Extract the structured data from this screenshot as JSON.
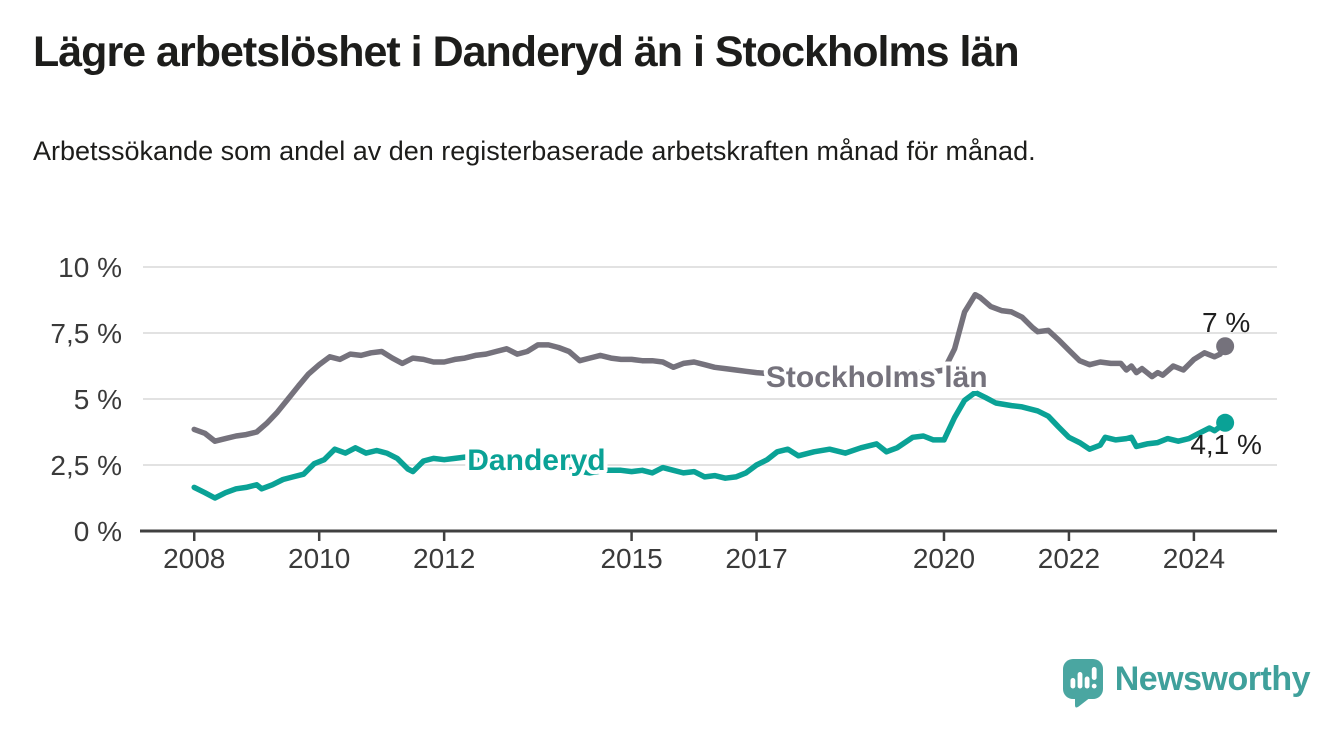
{
  "header": {
    "title": "Lägre arbetslöshet i Danderyd än i Stockholms län",
    "subtitle": "Arbetssökande som andel av den registerbaserade arbetskraften månad för månad."
  },
  "footer": {
    "brand": "Newsworthy",
    "logo_icon": "speech-bubble-bar-chart-icon",
    "brand_color": "#3fa09b",
    "bubble_color": "#4aa6a1"
  },
  "colors": {
    "stockholm_line": "#75727C",
    "danderyd_line": "#0AA296",
    "grid": "#d9d9d9",
    "axis_line": "#404040",
    "axis_text": "#3a3a3a",
    "value_label_text": "#1f1f1f"
  },
  "chart_data": {
    "type": "line",
    "title": "Lägre arbetslöshet i Danderyd än i Stockholms län",
    "subtitle": "Arbetssökande som andel av den registerbaserade arbetskraften månad för månad.",
    "unit": "%",
    "xlabel": "",
    "ylabel": "",
    "grid": "horizontal",
    "legend": "inline-labels",
    "xlim": [
      2007.18,
      2025.33
    ],
    "ylim": [
      0,
      10
    ],
    "x_ticks": [
      {
        "year": 2008,
        "label": "2008"
      },
      {
        "year": 2010,
        "label": "2010"
      },
      {
        "year": 2012,
        "label": "2012"
      },
      {
        "year": 2015,
        "label": "2015"
      },
      {
        "year": 2017,
        "label": "2017"
      },
      {
        "year": 2020,
        "label": "2020"
      },
      {
        "year": 2022,
        "label": "2022"
      },
      {
        "year": 2024,
        "label": "2024"
      }
    ],
    "y_ticks": [
      {
        "value": 0,
        "label": "0 %"
      },
      {
        "value": 2.5,
        "label": "2,5 %"
      },
      {
        "value": 5,
        "label": "5 %"
      },
      {
        "value": 7.5,
        "label": "7,5 %"
      },
      {
        "value": 10,
        "label": "10 %"
      }
    ],
    "series": [
      {
        "name": "Stockholms län",
        "color": "#75727C",
        "end_label": "7 %",
        "end_label_position": "above",
        "label_anchor": {
          "year": 2017.15,
          "pct": 5.87
        },
        "points": [
          [
            2008.0,
            3.85
          ],
          [
            2008.17,
            3.7
          ],
          [
            2008.33,
            3.4
          ],
          [
            2008.5,
            3.5
          ],
          [
            2008.67,
            3.6
          ],
          [
            2008.83,
            3.65
          ],
          [
            2009.0,
            3.75
          ],
          [
            2009.17,
            4.1
          ],
          [
            2009.33,
            4.5
          ],
          [
            2009.5,
            5.0
          ],
          [
            2009.67,
            5.5
          ],
          [
            2009.83,
            5.95
          ],
          [
            2010.0,
            6.3
          ],
          [
            2010.17,
            6.6
          ],
          [
            2010.33,
            6.5
          ],
          [
            2010.5,
            6.7
          ],
          [
            2010.67,
            6.65
          ],
          [
            2010.83,
            6.75
          ],
          [
            2011.0,
            6.8
          ],
          [
            2011.17,
            6.55
          ],
          [
            2011.33,
            6.35
          ],
          [
            2011.5,
            6.55
          ],
          [
            2011.67,
            6.5
          ],
          [
            2011.83,
            6.4
          ],
          [
            2012.0,
            6.4
          ],
          [
            2012.17,
            6.5
          ],
          [
            2012.33,
            6.55
          ],
          [
            2012.5,
            6.65
          ],
          [
            2012.67,
            6.7
          ],
          [
            2012.83,
            6.8
          ],
          [
            2013.0,
            6.9
          ],
          [
            2013.17,
            6.7
          ],
          [
            2013.33,
            6.8
          ],
          [
            2013.5,
            7.05
          ],
          [
            2013.67,
            7.05
          ],
          [
            2013.83,
            6.95
          ],
          [
            2014.0,
            6.8
          ],
          [
            2014.17,
            6.45
          ],
          [
            2014.33,
            6.55
          ],
          [
            2014.5,
            6.65
          ],
          [
            2014.67,
            6.55
          ],
          [
            2014.83,
            6.5
          ],
          [
            2015.0,
            6.5
          ],
          [
            2015.17,
            6.45
          ],
          [
            2015.33,
            6.45
          ],
          [
            2015.5,
            6.4
          ],
          [
            2015.67,
            6.2
          ],
          [
            2015.83,
            6.35
          ],
          [
            2016.0,
            6.4
          ],
          [
            2016.17,
            6.3
          ],
          [
            2016.33,
            6.2
          ],
          [
            2016.5,
            6.15
          ],
          [
            2016.67,
            6.1
          ],
          [
            2016.83,
            6.05
          ],
          [
            2017.0,
            6.0
          ],
          [
            2017.25,
            5.95
          ],
          [
            2017.5,
            5.9
          ],
          [
            2017.75,
            5.9
          ],
          [
            2018.0,
            5.85
          ],
          [
            2018.25,
            5.85
          ],
          [
            2018.5,
            5.85
          ],
          [
            2018.75,
            5.9
          ],
          [
            2019.0,
            5.9
          ],
          [
            2019.25,
            5.95
          ],
          [
            2019.5,
            6.0
          ],
          [
            2019.75,
            6.0
          ],
          [
            2020.0,
            6.1
          ],
          [
            2020.17,
            6.9
          ],
          [
            2020.33,
            8.3
          ],
          [
            2020.5,
            8.95
          ],
          [
            2020.58,
            8.85
          ],
          [
            2020.75,
            8.5
          ],
          [
            2020.92,
            8.35
          ],
          [
            2021.08,
            8.3
          ],
          [
            2021.25,
            8.1
          ],
          [
            2021.42,
            7.7
          ],
          [
            2021.5,
            7.55
          ],
          [
            2021.67,
            7.6
          ],
          [
            2021.83,
            7.25
          ],
          [
            2022.0,
            6.85
          ],
          [
            2022.17,
            6.45
          ],
          [
            2022.33,
            6.3
          ],
          [
            2022.5,
            6.4
          ],
          [
            2022.67,
            6.35
          ],
          [
            2022.83,
            6.35
          ],
          [
            2022.92,
            6.1
          ],
          [
            2023.0,
            6.25
          ],
          [
            2023.08,
            6.0
          ],
          [
            2023.17,
            6.15
          ],
          [
            2023.33,
            5.85
          ],
          [
            2023.42,
            6.0
          ],
          [
            2023.5,
            5.9
          ],
          [
            2023.67,
            6.25
          ],
          [
            2023.83,
            6.1
          ],
          [
            2024.0,
            6.5
          ],
          [
            2024.17,
            6.75
          ],
          [
            2024.33,
            6.6
          ],
          [
            2024.42,
            6.7
          ],
          [
            2024.5,
            7.0
          ]
        ]
      },
      {
        "name": "Danderyd",
        "color": "#0AA296",
        "end_label": "4,1 %",
        "end_label_position": "below",
        "label_anchor": {
          "year": 2012.37,
          "pct": 2.73
        },
        "points": [
          [
            2008.0,
            1.65
          ],
          [
            2008.17,
            1.45
          ],
          [
            2008.33,
            1.25
          ],
          [
            2008.5,
            1.45
          ],
          [
            2008.67,
            1.6
          ],
          [
            2008.83,
            1.65
          ],
          [
            2009.0,
            1.75
          ],
          [
            2009.08,
            1.6
          ],
          [
            2009.25,
            1.75
          ],
          [
            2009.42,
            1.95
          ],
          [
            2009.58,
            2.05
          ],
          [
            2009.75,
            2.15
          ],
          [
            2009.92,
            2.55
          ],
          [
            2010.08,
            2.7
          ],
          [
            2010.25,
            3.1
          ],
          [
            2010.42,
            2.95
          ],
          [
            2010.58,
            3.15
          ],
          [
            2010.75,
            2.95
          ],
          [
            2010.92,
            3.05
          ],
          [
            2011.08,
            2.95
          ],
          [
            2011.25,
            2.75
          ],
          [
            2011.42,
            2.35
          ],
          [
            2011.5,
            2.25
          ],
          [
            2011.67,
            2.65
          ],
          [
            2011.83,
            2.75
          ],
          [
            2012.0,
            2.7
          ],
          [
            2012.17,
            2.75
          ],
          [
            2012.33,
            2.8
          ],
          [
            2012.58,
            2.65
          ],
          [
            2012.83,
            2.7
          ],
          [
            2013.08,
            2.7
          ],
          [
            2013.33,
            2.6
          ],
          [
            2013.58,
            2.5
          ],
          [
            2013.83,
            2.4
          ],
          [
            2014.08,
            2.3
          ],
          [
            2014.33,
            2.2
          ],
          [
            2014.58,
            2.3
          ],
          [
            2014.83,
            2.3
          ],
          [
            2015.0,
            2.25
          ],
          [
            2015.17,
            2.3
          ],
          [
            2015.33,
            2.2
          ],
          [
            2015.5,
            2.4
          ],
          [
            2015.67,
            2.3
          ],
          [
            2015.83,
            2.2
          ],
          [
            2016.0,
            2.25
          ],
          [
            2016.17,
            2.05
          ],
          [
            2016.33,
            2.1
          ],
          [
            2016.5,
            2.0
          ],
          [
            2016.67,
            2.05
          ],
          [
            2016.83,
            2.2
          ],
          [
            2017.0,
            2.5
          ],
          [
            2017.17,
            2.7
          ],
          [
            2017.33,
            3.0
          ],
          [
            2017.5,
            3.1
          ],
          [
            2017.67,
            2.85
          ],
          [
            2017.92,
            3.0
          ],
          [
            2018.17,
            3.1
          ],
          [
            2018.42,
            2.95
          ],
          [
            2018.67,
            3.15
          ],
          [
            2018.92,
            3.3
          ],
          [
            2019.08,
            3.0
          ],
          [
            2019.25,
            3.15
          ],
          [
            2019.5,
            3.55
          ],
          [
            2019.67,
            3.6
          ],
          [
            2019.83,
            3.45
          ],
          [
            2020.0,
            3.45
          ],
          [
            2020.17,
            4.3
          ],
          [
            2020.33,
            4.95
          ],
          [
            2020.5,
            5.25
          ],
          [
            2020.67,
            5.05
          ],
          [
            2020.83,
            4.85
          ],
          [
            2021.08,
            4.75
          ],
          [
            2021.25,
            4.7
          ],
          [
            2021.5,
            4.55
          ],
          [
            2021.67,
            4.35
          ],
          [
            2021.83,
            3.95
          ],
          [
            2022.0,
            3.55
          ],
          [
            2022.17,
            3.35
          ],
          [
            2022.33,
            3.1
          ],
          [
            2022.5,
            3.25
          ],
          [
            2022.58,
            3.55
          ],
          [
            2022.75,
            3.45
          ],
          [
            2022.92,
            3.5
          ],
          [
            2023.0,
            3.55
          ],
          [
            2023.08,
            3.2
          ],
          [
            2023.25,
            3.3
          ],
          [
            2023.42,
            3.35
          ],
          [
            2023.58,
            3.5
          ],
          [
            2023.75,
            3.4
          ],
          [
            2023.92,
            3.5
          ],
          [
            2024.08,
            3.7
          ],
          [
            2024.25,
            3.9
          ],
          [
            2024.33,
            3.8
          ],
          [
            2024.42,
            3.95
          ],
          [
            2024.5,
            4.1
          ]
        ]
      }
    ]
  }
}
